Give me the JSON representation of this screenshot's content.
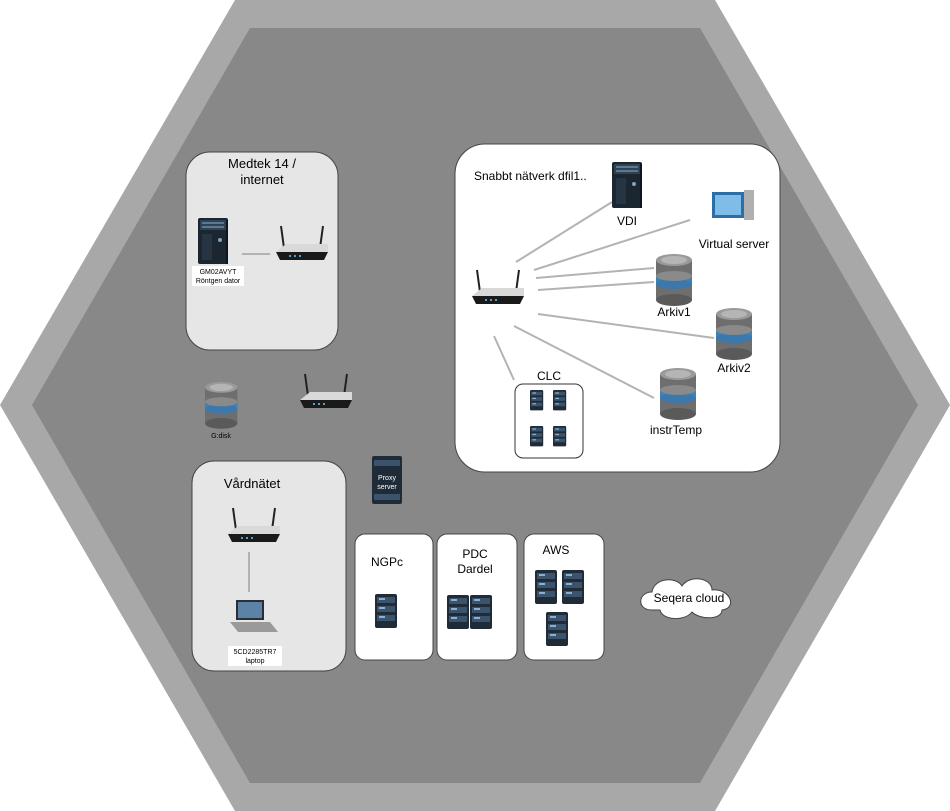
{
  "medtek": {
    "title_line1": "Medtek 14 /",
    "title_line2": "internet",
    "computer_line1": "GM02AVYT",
    "computer_line2": "Röntgen dator"
  },
  "fast_network": {
    "title": "Snabbt nätverk dfil1..",
    "vdi": "VDI",
    "virtual_server": "Virtual server",
    "arkiv1": "Arkiv1",
    "arkiv2": "Arkiv2",
    "instrtemp": "instrTemp",
    "clc": "CLC"
  },
  "gdisk": "G:disk",
  "proxy_line1": "Proxy",
  "proxy_line2": "server",
  "vardnatet": {
    "title": "Vårdnätet",
    "laptop_line1": "5CD2285TR7",
    "laptop_line2": "laptop"
  },
  "ngpc": "NGPc",
  "pdc_line1": "PDC",
  "pdc_line2": "Dardel",
  "aws": "AWS",
  "seqera": "Seqera cloud",
  "colors": {
    "outer_hexagon": "#a8a8a8",
    "inner_hexagon": "#888888",
    "panel_grey": "#e6e6e6",
    "panel_white": "#ffffff"
  }
}
